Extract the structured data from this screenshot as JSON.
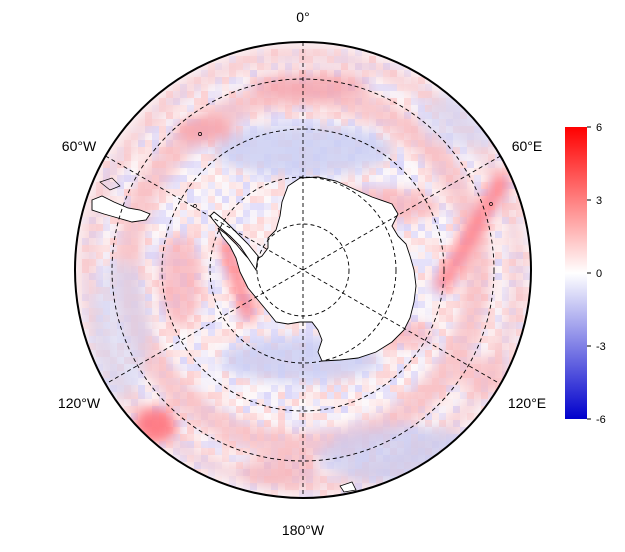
{
  "map": {
    "projection": "south-polar-stereographic",
    "longitude_labels": [
      "0°",
      "60°E",
      "120°E",
      "180°W",
      "120°W",
      "60°W"
    ],
    "graticule_style": "dashed",
    "colors": {
      "low": "#0000cc",
      "mid": "#ffffff",
      "high": "#ff0000",
      "coast": "#000000",
      "land_fill": "#ffffff"
    }
  },
  "colorbar": {
    "min": -6,
    "max": 6,
    "ticks": [
      "6",
      "3",
      "0",
      "-3",
      "-6"
    ]
  }
}
